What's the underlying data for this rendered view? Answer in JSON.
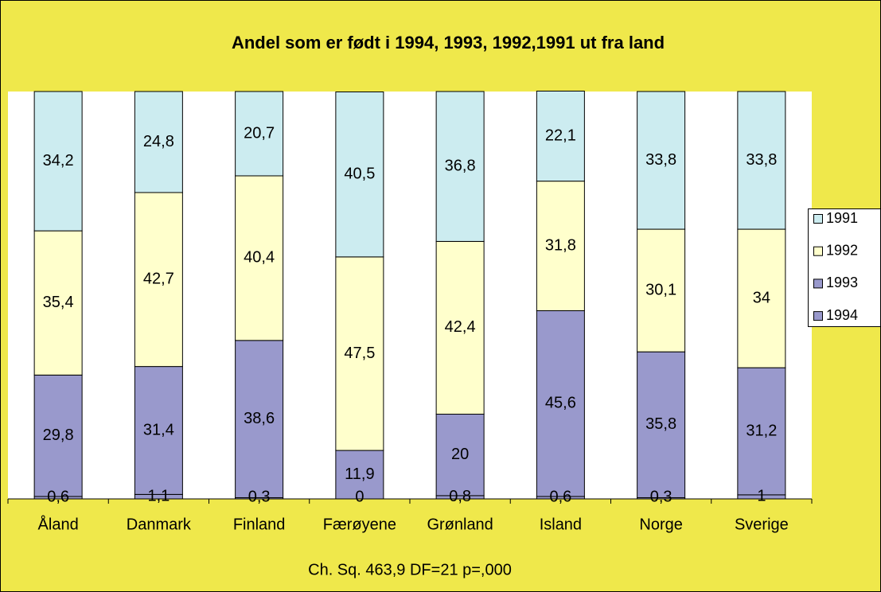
{
  "chart_data": {
    "type": "stacked-bar",
    "title": "Andel som er født i 1994, 1993, 1992,1991 ut fra land",
    "annotation": "Ch. Sq. 463,9 DF=21 p=,000",
    "categories": [
      "Åland",
      "Danmark",
      "Finland",
      "Færøyene",
      "Grønland",
      "Island",
      "Norge",
      "Sverige"
    ],
    "ylim": [
      0,
      100
    ],
    "legend": "right",
    "series": [
      {
        "name": "1994",
        "color": "#9999cc",
        "values": [
          0.6,
          1.1,
          0.3,
          0,
          0.8,
          0.6,
          0.3,
          1
        ],
        "value_labels": [
          "0,6",
          "1,1",
          "0,3",
          "0",
          "0,8",
          "0,6",
          "0,3",
          "1"
        ]
      },
      {
        "name": "1993",
        "color": "#9999cc",
        "values": [
          29.8,
          31.4,
          38.6,
          11.9,
          20,
          45.6,
          35.8,
          31.2
        ],
        "value_labels": [
          "29,8",
          "31,4",
          "38,6",
          "11,9",
          "20",
          "45,6",
          "35,8",
          "31,2"
        ]
      },
      {
        "name": "1992",
        "color": "#ffffcc",
        "values": [
          35.4,
          42.7,
          40.4,
          47.5,
          42.4,
          31.8,
          30.1,
          34
        ],
        "value_labels": [
          "35,4",
          "42,7",
          "40,4",
          "47,5",
          "42,4",
          "31,8",
          "30,1",
          "34"
        ]
      },
      {
        "name": "1991",
        "color": "#ccecf0",
        "values": [
          34.2,
          24.8,
          20.7,
          40.5,
          36.8,
          22.1,
          33.8,
          33.8
        ],
        "value_labels": [
          "34,2",
          "24,8",
          "20,7",
          "40,5",
          "36,8",
          "22,1",
          "33,8",
          "33,8"
        ]
      }
    ]
  }
}
